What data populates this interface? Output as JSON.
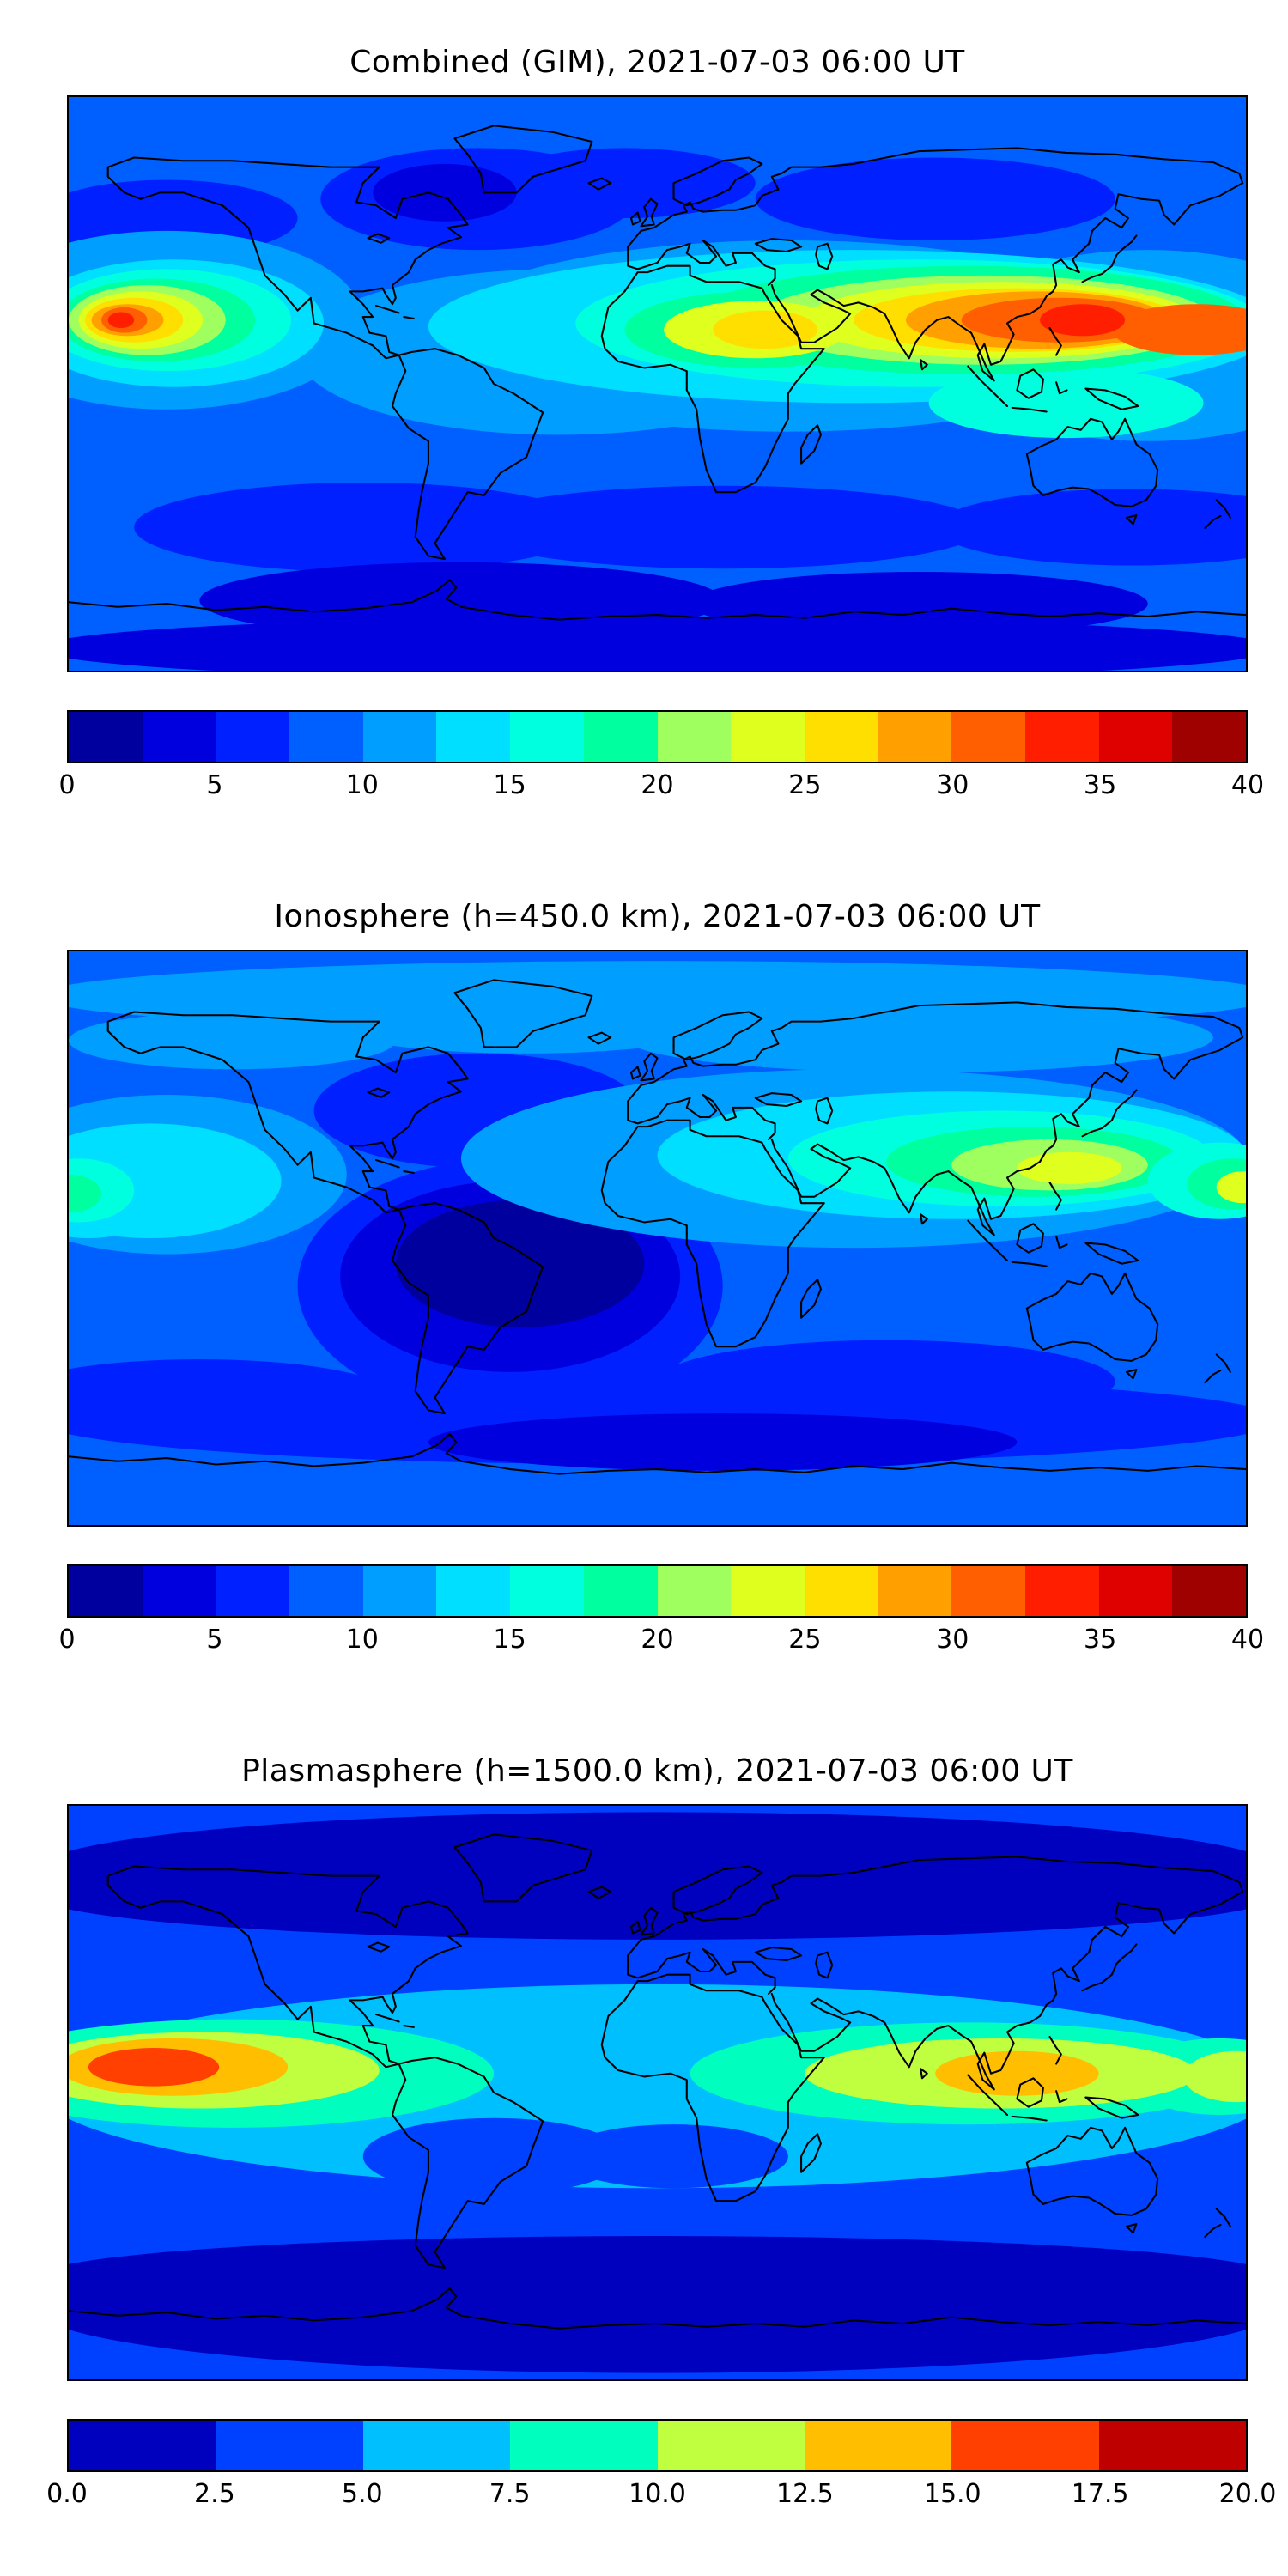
{
  "figure": {
    "background": "#ffffff",
    "coastline_color": "#000000"
  },
  "chart_data": [
    {
      "type": "filled_contour_map",
      "title": "Combined (GIM), 2021-07-03 06:00 UT",
      "projection": "equirectangular",
      "lon_range": [
        -180,
        180
      ],
      "lat_range": [
        -90,
        90
      ],
      "base_value": 8,
      "colorbar": {
        "min": 0,
        "max": 40,
        "ticks": [
          "0",
          "5",
          "10",
          "15",
          "20",
          "25",
          "30",
          "35",
          "40"
        ],
        "colors": [
          "#00009f",
          "#0000df",
          "#0020ff",
          "#0060ff",
          "#009fff",
          "#00dfff",
          "#00ffdf",
          "#00ff9f",
          "#9fff5f",
          "#dfff1f",
          "#ffdf00",
          "#ff9f00",
          "#ff5f00",
          "#ff1f00",
          "#df0000",
          "#9f0000"
        ]
      },
      "features": [
        {
          "lon": -55,
          "lat": 58,
          "rx": 48,
          "ry": 16,
          "value": 6
        },
        {
          "lon": -10,
          "lat": 63,
          "rx": 40,
          "ry": 11,
          "value": 6
        },
        {
          "lon": 85,
          "lat": 58,
          "rx": 55,
          "ry": 13,
          "value": 6
        },
        {
          "lon": -150,
          "lat": 52,
          "rx": 40,
          "ry": 12,
          "value": 6
        },
        {
          "lon": -65,
          "lat": 60,
          "rx": 22,
          "ry": 9,
          "value": 4
        },
        {
          "lon": -90,
          "lat": -45,
          "rx": 70,
          "ry": 14,
          "value": 6
        },
        {
          "lon": 20,
          "lat": -45,
          "rx": 80,
          "ry": 13,
          "value": 6
        },
        {
          "lon": 145,
          "lat": -45,
          "rx": 60,
          "ry": 12,
          "value": 6
        },
        {
          "lon": -60,
          "lat": -68,
          "rx": 80,
          "ry": 12,
          "value": 4
        },
        {
          "lon": 80,
          "lat": -69,
          "rx": 70,
          "ry": 10,
          "value": 4
        },
        {
          "lon": 0,
          "lat": -83,
          "rx": 190,
          "ry": 10,
          "value": 4
        },
        {
          "lon": -30,
          "lat": 10,
          "rx": 80,
          "ry": 26,
          "value": 10
        },
        {
          "lon": 40,
          "lat": 15,
          "rx": 110,
          "ry": 30,
          "value": 10
        },
        {
          "lon": 150,
          "lat": 12,
          "rx": 65,
          "ry": 30,
          "value": 10
        },
        {
          "lon": -150,
          "lat": 20,
          "rx": 60,
          "ry": 28,
          "value": 10
        },
        {
          "lon": 60,
          "lat": 18,
          "rx": 130,
          "ry": 24,
          "value": 13
        },
        {
          "lon": -148,
          "lat": 19,
          "rx": 46,
          "ry": 20,
          "value": 13
        },
        {
          "lon": 125,
          "lat": -6,
          "rx": 42,
          "ry": 11,
          "value": 16
        },
        {
          "lon": 80,
          "lat": 19,
          "rx": 105,
          "ry": 20,
          "value": 16
        },
        {
          "lon": 95,
          "lat": 20,
          "rx": 85,
          "ry": 17,
          "value": 19
        },
        {
          "lon": 30,
          "lat": 17,
          "rx": 40,
          "ry": 12,
          "value": 19
        },
        {
          "lon": 100,
          "lat": 20,
          "rx": 70,
          "ry": 14,
          "value": 22
        },
        {
          "lon": 30,
          "lat": 17,
          "rx": 28,
          "ry": 9,
          "value": 23
        },
        {
          "lon": 105,
          "lat": 20,
          "rx": 60,
          "ry": 12,
          "value": 24
        },
        {
          "lon": 33,
          "lat": 17,
          "rx": 16,
          "ry": 6,
          "value": 26
        },
        {
          "lon": 110,
          "lat": 20,
          "rx": 50,
          "ry": 10,
          "value": 26
        },
        {
          "lon": 116,
          "lat": 20,
          "rx": 40,
          "ry": 9,
          "value": 29
        },
        {
          "lon": 123,
          "lat": 20,
          "rx": 30,
          "ry": 7,
          "value": 31
        },
        {
          "lon": 165,
          "lat": 17,
          "rx": 26,
          "ry": 8,
          "value": 31
        },
        {
          "lon": 130,
          "lat": 20,
          "rx": 13,
          "ry": 5,
          "value": 33
        },
        {
          "lon": -150,
          "lat": 20,
          "rx": 38,
          "ry": 16,
          "value": 16
        },
        {
          "lon": -153,
          "lat": 20,
          "rx": 30,
          "ry": 13,
          "value": 19
        },
        {
          "lon": -156,
          "lat": 20,
          "rx": 24,
          "ry": 11,
          "value": 22
        },
        {
          "lon": -158,
          "lat": 20,
          "rx": 19,
          "ry": 9,
          "value": 24
        },
        {
          "lon": -160,
          "lat": 20,
          "rx": 15,
          "ry": 7,
          "value": 26
        },
        {
          "lon": -162,
          "lat": 20,
          "rx": 11,
          "ry": 5,
          "value": 29
        },
        {
          "lon": -163,
          "lat": 20,
          "rx": 7,
          "ry": 4,
          "value": 31
        },
        {
          "lon": -164,
          "lat": 20,
          "rx": 4,
          "ry": 2.5,
          "value": 34
        }
      ]
    },
    {
      "type": "filled_contour_map",
      "title": "Ionosphere  (h=450.0 km), 2021-07-03 06:00 UT",
      "projection": "equirectangular",
      "lon_range": [
        -180,
        180
      ],
      "lat_range": [
        -90,
        90
      ],
      "base_value": 8,
      "colorbar": {
        "min": 0,
        "max": 40,
        "ticks": [
          "0",
          "5",
          "10",
          "15",
          "20",
          "25",
          "30",
          "35",
          "40"
        ],
        "colors": [
          "#00009f",
          "#0000df",
          "#0020ff",
          "#0060ff",
          "#009fff",
          "#00dfff",
          "#00ffdf",
          "#00ff9f",
          "#9fff5f",
          "#dfff1f",
          "#ffdf00",
          "#ff9f00",
          "#ff5f00",
          "#ff1f00",
          "#df0000",
          "#9f0000"
        ]
      },
      "features": [
        {
          "lon": 0,
          "lat": 76,
          "rx": 190,
          "ry": 11,
          "value": 11
        },
        {
          "lon": -40,
          "lat": 67,
          "rx": 60,
          "ry": 9,
          "value": 11
        },
        {
          "lon": 80,
          "lat": 63,
          "rx": 90,
          "ry": 11,
          "value": 11
        },
        {
          "lon": -130,
          "lat": 62,
          "rx": 50,
          "ry": 9,
          "value": 11
        },
        {
          "lon": -55,
          "lat": 40,
          "rx": 50,
          "ry": 18,
          "value": 6
        },
        {
          "lon": -45,
          "lat": -15,
          "rx": 65,
          "ry": 40,
          "value": 6
        },
        {
          "lon": -45,
          "lat": -12,
          "rx": 52,
          "ry": 30,
          "value": 4
        },
        {
          "lon": -42,
          "lat": -8,
          "rx": 38,
          "ry": 20,
          "value": 2
        },
        {
          "lon": 0,
          "lat": -57,
          "rx": 190,
          "ry": 14,
          "value": 6
        },
        {
          "lon": 70,
          "lat": -45,
          "rx": 70,
          "ry": 13,
          "value": 6
        },
        {
          "lon": -140,
          "lat": -50,
          "rx": 60,
          "ry": 12,
          "value": 6
        },
        {
          "lon": 20,
          "lat": -64,
          "rx": 90,
          "ry": 9,
          "value": 4
        },
        {
          "lon": 60,
          "lat": 25,
          "rx": 120,
          "ry": 28,
          "value": 11
        },
        {
          "lon": -150,
          "lat": 20,
          "rx": 55,
          "ry": 25,
          "value": 11
        },
        {
          "lon": 90,
          "lat": 26,
          "rx": 90,
          "ry": 20,
          "value": 13
        },
        {
          "lon": -155,
          "lat": 18,
          "rx": 40,
          "ry": 18,
          "value": 13
        },
        {
          "lon": 105,
          "lat": 25,
          "rx": 65,
          "ry": 15,
          "value": 16
        },
        {
          "lon": 115,
          "lat": 24,
          "rx": 45,
          "ry": 11,
          "value": 19
        },
        {
          "lon": 120,
          "lat": 23,
          "rx": 30,
          "ry": 8,
          "value": 21
        },
        {
          "lon": 126,
          "lat": 22,
          "rx": 16,
          "ry": 5,
          "value": 23
        },
        {
          "lon": 172,
          "lat": 18,
          "rx": 22,
          "ry": 12,
          "value": 16
        },
        {
          "lon": 176,
          "lat": 17,
          "rx": 14,
          "ry": 8,
          "value": 19
        },
        {
          "lon": 179,
          "lat": 16,
          "rx": 8,
          "ry": 5,
          "value": 24
        },
        {
          "lon": -174,
          "lat": 16,
          "rx": 26,
          "ry": 16,
          "value": 13
        },
        {
          "lon": -177,
          "lat": 15,
          "rx": 17,
          "ry": 10,
          "value": 16
        },
        {
          "lon": -180,
          "lat": 14,
          "rx": 10,
          "ry": 6,
          "value": 19
        }
      ]
    },
    {
      "type": "filled_contour_map",
      "title": "Plasmasphere (h=1500.0 km), 2021-07-03 06:00 UT",
      "projection": "equirectangular",
      "lon_range": [
        -180,
        180
      ],
      "lat_range": [
        -90,
        90
      ],
      "base_value": 3,
      "colorbar": {
        "min": 0,
        "max": 20,
        "ticks": [
          "0.0",
          "2.5",
          "5.0",
          "7.5",
          "10.0",
          "12.5",
          "15.0",
          "17.5",
          "20.0"
        ],
        "colors": [
          "#0000bf",
          "#0040ff",
          "#00bfff",
          "#00ffbf",
          "#bfff40",
          "#ffbf00",
          "#ff4000",
          "#bf0000"
        ]
      },
      "features": [
        {
          "lon": 0,
          "lat": 70,
          "rx": 190,
          "ry": 18,
          "value": 2
        },
        {
          "lon": 0,
          "lat": 62,
          "rx": 190,
          "ry": 14,
          "value": 2
        },
        {
          "lon": 0,
          "lat": -68,
          "rx": 190,
          "ry": 20,
          "value": 2
        },
        {
          "lon": 0,
          "lat": -58,
          "rx": 190,
          "ry": 13,
          "value": 2
        },
        {
          "lon": 0,
          "lat": 2,
          "rx": 190,
          "ry": 32,
          "value": 6
        },
        {
          "lon": -50,
          "lat": -20,
          "rx": 40,
          "ry": 12,
          "value": 3
        },
        {
          "lon": 5,
          "lat": -20,
          "rx": 35,
          "ry": 10,
          "value": 3
        },
        {
          "lon": -130,
          "lat": 6,
          "rx": 80,
          "ry": 17,
          "value": 8
        },
        {
          "lon": 95,
          "lat": 6,
          "rx": 85,
          "ry": 16,
          "value": 8
        },
        {
          "lon": 172,
          "lat": 5,
          "rx": 28,
          "ry": 12,
          "value": 8
        },
        {
          "lon": -140,
          "lat": 7,
          "rx": 55,
          "ry": 12,
          "value": 11
        },
        {
          "lon": 105,
          "lat": 6,
          "rx": 60,
          "ry": 11,
          "value": 11
        },
        {
          "lon": 177,
          "lat": 5,
          "rx": 16,
          "ry": 8,
          "value": 11
        },
        {
          "lon": -148,
          "lat": 8,
          "rx": 35,
          "ry": 9,
          "value": 13
        },
        {
          "lon": 110,
          "lat": 6,
          "rx": 25,
          "ry": 7,
          "value": 13
        },
        {
          "lon": -154,
          "lat": 8,
          "rx": 20,
          "ry": 6,
          "value": 16
        }
      ]
    }
  ]
}
